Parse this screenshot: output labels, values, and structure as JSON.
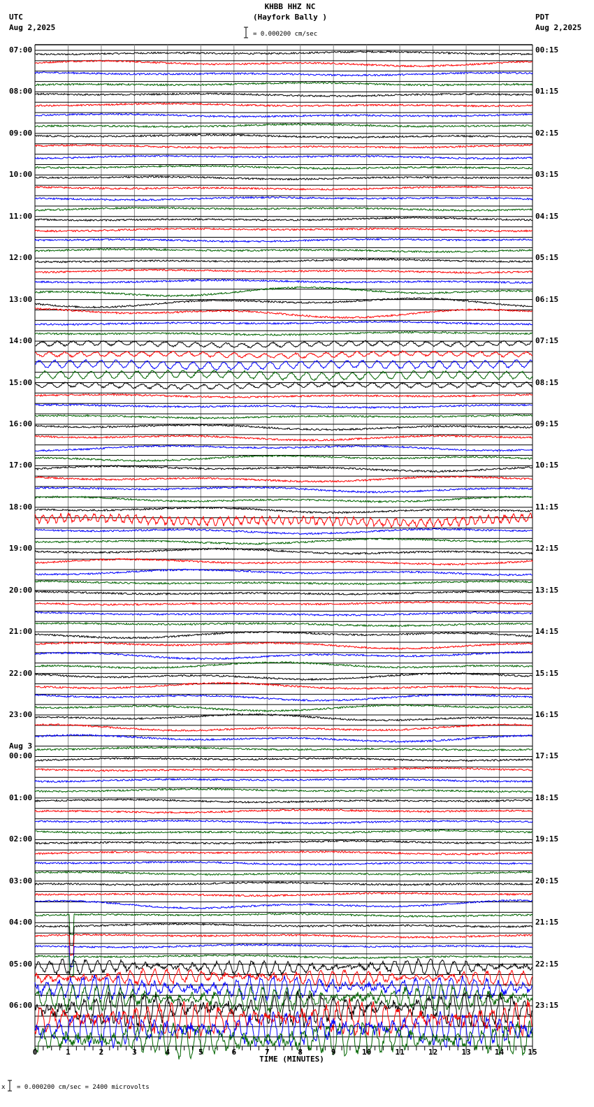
{
  "header": {
    "station": "KHBB HHZ NC",
    "location": "(Hayfork Bally )",
    "scale_text": "= 0.000200 cm/sec",
    "left_tz": "UTC",
    "left_date": "Aug 2,2025",
    "right_tz": "PDT",
    "right_date": "Aug 2,2025"
  },
  "footer": {
    "scale_text": "= 0.000200 cm/sec =    2400 microvolts",
    "scale_prefix": "x"
  },
  "chart_data": {
    "type": "line",
    "title": "KHBB HHZ NC (Hayfork Bally ) helicorder",
    "xlabel": "TIME (MINUTES)",
    "ylabel": "",
    "xlim": [
      0,
      15
    ],
    "x_ticks": [
      "0",
      "1",
      "2",
      "3",
      "4",
      "5",
      "6",
      "7",
      "8",
      "9",
      "10",
      "11",
      "12",
      "13",
      "14",
      "15"
    ],
    "trace_colors": [
      "#000000",
      "#ff0000",
      "#0000ff",
      "#006400"
    ],
    "traces_per_hour": 4,
    "minutes_per_trace": 15,
    "num_traces": 96,
    "scale": "0.000200 cm/sec = 2400 microvolts",
    "left_labels": [
      {
        "row": 0,
        "text": "07:00"
      },
      {
        "row": 4,
        "text": "08:00"
      },
      {
        "row": 8,
        "text": "09:00"
      },
      {
        "row": 12,
        "text": "10:00"
      },
      {
        "row": 16,
        "text": "11:00"
      },
      {
        "row": 20,
        "text": "12:00"
      },
      {
        "row": 24,
        "text": "13:00"
      },
      {
        "row": 28,
        "text": "14:00"
      },
      {
        "row": 32,
        "text": "15:00"
      },
      {
        "row": 36,
        "text": "16:00"
      },
      {
        "row": 40,
        "text": "17:00"
      },
      {
        "row": 44,
        "text": "18:00"
      },
      {
        "row": 48,
        "text": "19:00"
      },
      {
        "row": 52,
        "text": "20:00"
      },
      {
        "row": 56,
        "text": "21:00"
      },
      {
        "row": 60,
        "text": "22:00"
      },
      {
        "row": 64,
        "text": "23:00"
      },
      {
        "row": 68,
        "text": "00:00",
        "date": "Aug 3"
      },
      {
        "row": 72,
        "text": "01:00"
      },
      {
        "row": 76,
        "text": "02:00"
      },
      {
        "row": 80,
        "text": "03:00"
      },
      {
        "row": 84,
        "text": "04:00"
      },
      {
        "row": 88,
        "text": "05:00"
      },
      {
        "row": 92,
        "text": "06:00"
      }
    ],
    "right_labels": [
      {
        "row": 0,
        "text": "00:15"
      },
      {
        "row": 4,
        "text": "01:15"
      },
      {
        "row": 8,
        "text": "02:15"
      },
      {
        "row": 12,
        "text": "03:15"
      },
      {
        "row": 16,
        "text": "04:15"
      },
      {
        "row": 20,
        "text": "05:15"
      },
      {
        "row": 24,
        "text": "06:15"
      },
      {
        "row": 28,
        "text": "07:15"
      },
      {
        "row": 32,
        "text": "08:15"
      },
      {
        "row": 36,
        "text": "09:15"
      },
      {
        "row": 40,
        "text": "10:15"
      },
      {
        "row": 44,
        "text": "11:15"
      },
      {
        "row": 48,
        "text": "12:15"
      },
      {
        "row": 52,
        "text": "13:15"
      },
      {
        "row": 56,
        "text": "14:15"
      },
      {
        "row": 60,
        "text": "15:15"
      },
      {
        "row": 64,
        "text": "16:15"
      },
      {
        "row": 68,
        "text": "17:15"
      },
      {
        "row": 72,
        "text": "18:15"
      },
      {
        "row": 76,
        "text": "19:15"
      },
      {
        "row": 80,
        "text": "20:15"
      },
      {
        "row": 84,
        "text": "21:15"
      },
      {
        "row": 88,
        "text": "22:15"
      },
      {
        "row": 92,
        "text": "23:15"
      }
    ],
    "notable_events": [
      {
        "rows": [
          23,
          24,
          25
        ],
        "description": "long-period wander 12:45-13:30 UTC"
      },
      {
        "rows": [
          28,
          29,
          30,
          31,
          32
        ],
        "description": "regional oscillations 14:00-15:00 UTC"
      },
      {
        "rows": [
          45
        ],
        "description": "noisy red trace 18:15 UTC"
      },
      {
        "rows": [
          83,
          84,
          85,
          86,
          87
        ],
        "description": "spike near 1.1 min, 03:45 UTC"
      },
      {
        "rows": [
          88,
          89,
          90,
          91,
          92,
          93,
          94,
          95
        ],
        "description": "large teleseismic signal 05:00-06:59 UTC"
      }
    ]
  }
}
